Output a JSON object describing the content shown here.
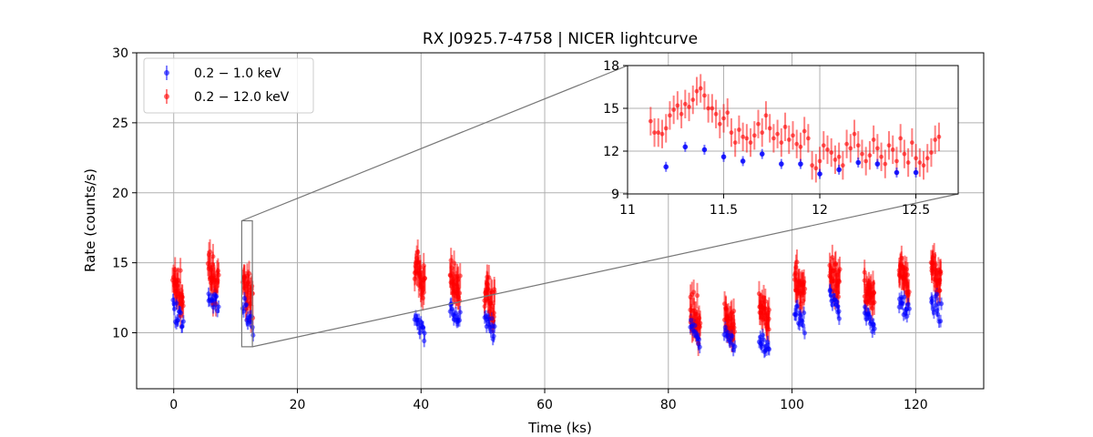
{
  "chart_data": {
    "type": "scatter",
    "title": "RX J0925.7-4758 | NICER lightcurve",
    "xlabel": "Time (ks)",
    "ylabel": "Rate (counts/s)",
    "xlim": [
      -6,
      131
    ],
    "ylim": [
      6,
      30
    ],
    "xticks": [
      0,
      20,
      40,
      60,
      80,
      100,
      120
    ],
    "yticks": [
      10,
      15,
      20,
      25,
      30
    ],
    "grid": true,
    "legend": "top-left",
    "series": [
      {
        "name": "0.2 − 1.0 keV",
        "color": "#0000ff",
        "segments": [
          {
            "t": 0.7,
            "rate": 11.4
          },
          {
            "t": 6.4,
            "rate": 12.3
          },
          {
            "t": 12.0,
            "rate": 11.4
          },
          {
            "t": 39.8,
            "rate": 10.6
          },
          {
            "t": 45.5,
            "rate": 11.3
          },
          {
            "t": 51.1,
            "rate": 10.4
          },
          {
            "t": 84.3,
            "rate": 9.9
          },
          {
            "t": 89.9,
            "rate": 9.7
          },
          {
            "t": 95.5,
            "rate": 9.2
          },
          {
            "t": 101.2,
            "rate": 11.0
          },
          {
            "t": 106.9,
            "rate": 12.2
          },
          {
            "t": 112.5,
            "rate": 11.0
          },
          {
            "t": 118.1,
            "rate": 12.0
          },
          {
            "t": 123.3,
            "rate": 11.8
          }
        ]
      },
      {
        "name": "0.2 − 12.0 keV",
        "color": "#ff0000",
        "segments": [
          {
            "t": 0.7,
            "rate": 13.0
          },
          {
            "t": 6.4,
            "rate": 13.8
          },
          {
            "t": 12.0,
            "rate": 13.0
          },
          {
            "t": 39.8,
            "rate": 14.0
          },
          {
            "t": 45.5,
            "rate": 13.5
          },
          {
            "t": 51.1,
            "rate": 12.5
          },
          {
            "t": 84.3,
            "rate": 11.2
          },
          {
            "t": 89.9,
            "rate": 10.6
          },
          {
            "t": 95.5,
            "rate": 11.3
          },
          {
            "t": 101.2,
            "rate": 13.3
          },
          {
            "t": 106.9,
            "rate": 14.1
          },
          {
            "t": 112.5,
            "rate": 12.6
          },
          {
            "t": 118.1,
            "rate": 13.9
          },
          {
            "t": 123.3,
            "rate": 14.0
          }
        ]
      }
    ],
    "inset": {
      "xlim": [
        11,
        12.72
      ],
      "ylim": [
        9,
        18
      ],
      "xticks": [
        11,
        11.5,
        12,
        12.5
      ],
      "xtick_labels": [
        "11",
        "11.5",
        "12",
        "12.5"
      ],
      "yticks": [
        9,
        12,
        15,
        18
      ],
      "zoom_region": {
        "x": [
          11,
          12.72
        ],
        "y": [
          9,
          18
        ]
      },
      "soft_band": [
        [
          11.2,
          10.9
        ],
        [
          11.3,
          12.3
        ],
        [
          11.4,
          12.1
        ],
        [
          11.5,
          11.6
        ],
        [
          11.6,
          11.3
        ],
        [
          11.7,
          11.8
        ],
        [
          11.8,
          11.1
        ],
        [
          11.9,
          11.1
        ],
        [
          12.0,
          10.4
        ],
        [
          12.1,
          10.7
        ],
        [
          12.2,
          11.2
        ],
        [
          12.3,
          11.1
        ],
        [
          12.4,
          10.5
        ],
        [
          12.5,
          10.5
        ]
      ],
      "full_band": [
        [
          11.12,
          14.1
        ],
        [
          11.14,
          13.3
        ],
        [
          11.16,
          13.3
        ],
        [
          11.18,
          13.2
        ],
        [
          11.2,
          13.6
        ],
        [
          11.22,
          14.5
        ],
        [
          11.24,
          14.9
        ],
        [
          11.26,
          15.2
        ],
        [
          11.28,
          14.6
        ],
        [
          11.3,
          15.3
        ],
        [
          11.32,
          15.1
        ],
        [
          11.34,
          15.6
        ],
        [
          11.36,
          16.2
        ],
        [
          11.38,
          16.4
        ],
        [
          11.4,
          15.9
        ],
        [
          11.42,
          15.0
        ],
        [
          11.44,
          15.0
        ],
        [
          11.46,
          14.6
        ],
        [
          11.48,
          13.9
        ],
        [
          11.5,
          14.3
        ],
        [
          11.52,
          14.7
        ],
        [
          11.54,
          13.3
        ],
        [
          11.56,
          12.6
        ],
        [
          11.58,
          13.5
        ],
        [
          11.6,
          13.0
        ],
        [
          11.62,
          12.9
        ],
        [
          11.64,
          12.6
        ],
        [
          11.66,
          13.1
        ],
        [
          11.68,
          13.9
        ],
        [
          11.7,
          13.3
        ],
        [
          11.72,
          14.5
        ],
        [
          11.74,
          13.6
        ],
        [
          11.76,
          12.9
        ],
        [
          11.78,
          13.2
        ],
        [
          11.8,
          12.6
        ],
        [
          11.82,
          13.7
        ],
        [
          11.84,
          12.8
        ],
        [
          11.86,
          13.1
        ],
        [
          11.88,
          12.5
        ],
        [
          11.9,
          12.3
        ],
        [
          11.92,
          13.4
        ],
        [
          11.94,
          12.9
        ],
        [
          11.96,
          11.0
        ],
        [
          11.98,
          10.8
        ],
        [
          12.0,
          11.3
        ],
        [
          12.02,
          12.4
        ],
        [
          12.04,
          12.1
        ],
        [
          12.06,
          11.9
        ],
        [
          12.08,
          11.4
        ],
        [
          12.1,
          11.6
        ],
        [
          12.12,
          11.0
        ],
        [
          12.14,
          12.5
        ],
        [
          12.16,
          12.2
        ],
        [
          12.18,
          13.2
        ],
        [
          12.2,
          12.4
        ],
        [
          12.22,
          11.8
        ],
        [
          12.24,
          11.3
        ],
        [
          12.26,
          11.7
        ],
        [
          12.28,
          12.8
        ],
        [
          12.3,
          12.2
        ],
        [
          12.32,
          11.6
        ],
        [
          12.34,
          11.1
        ],
        [
          12.36,
          12.4
        ],
        [
          12.38,
          12.1
        ],
        [
          12.4,
          11.3
        ],
        [
          12.42,
          12.9
        ],
        [
          12.44,
          11.8
        ],
        [
          12.46,
          11.2
        ],
        [
          12.48,
          12.6
        ],
        [
          12.5,
          11.5
        ],
        [
          12.52,
          11.2
        ],
        [
          12.54,
          11.0
        ],
        [
          12.56,
          11.5
        ],
        [
          12.58,
          11.9
        ],
        [
          12.6,
          12.8
        ],
        [
          12.62,
          13.0
        ]
      ]
    }
  }
}
